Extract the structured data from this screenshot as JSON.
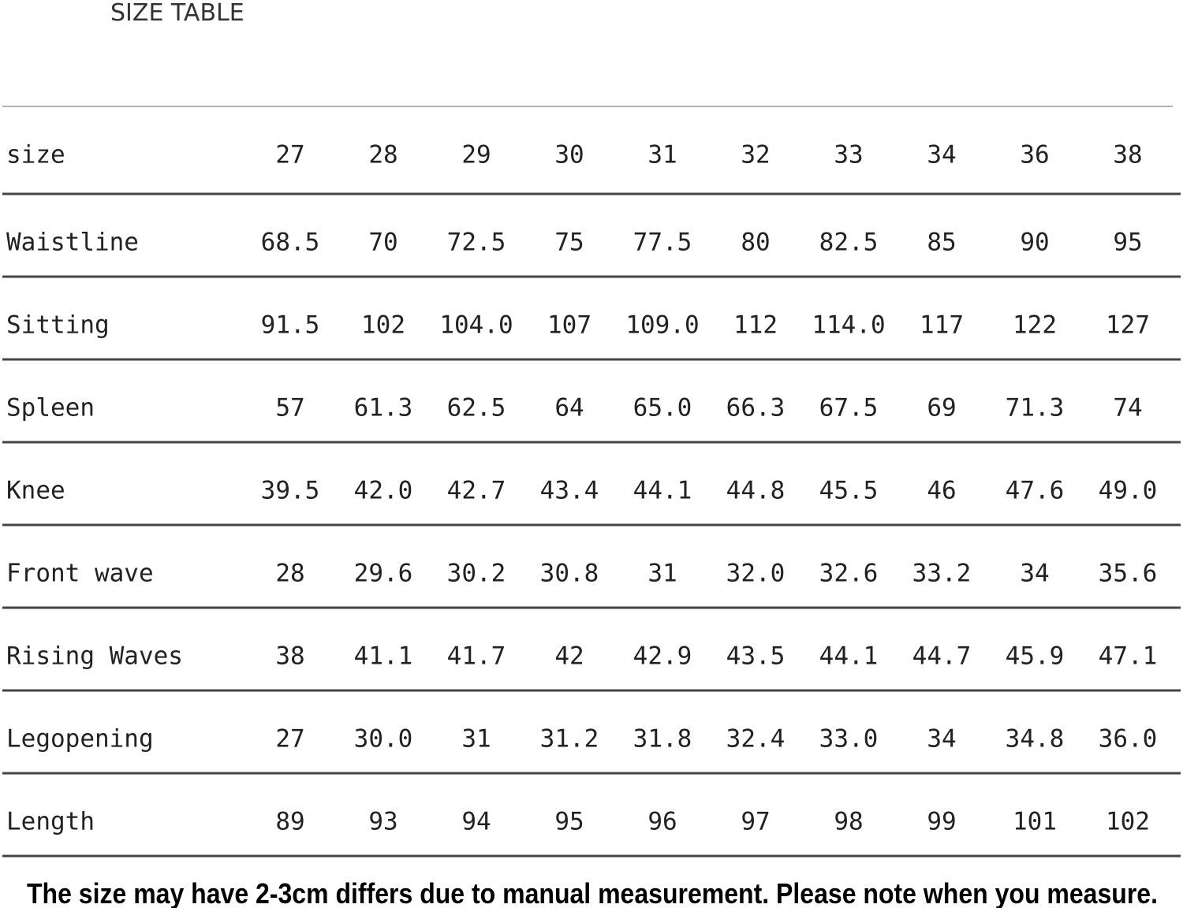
{
  "title": "SIZE TABLE",
  "table": {
    "header": [
      "size",
      "27",
      "28",
      "29",
      "30",
      "31",
      "32",
      "33",
      "34",
      "36",
      "38"
    ],
    "rows": [
      [
        "Waistline",
        "68.5",
        "70",
        "72.5",
        "75",
        "77.5",
        "80",
        "82.5",
        "85",
        "90",
        "95"
      ],
      [
        "Sitting",
        "91.5",
        "102",
        "104.0",
        "107",
        "109.0",
        "112",
        "114.0",
        "117",
        "122",
        "127"
      ],
      [
        "Spleen",
        "57",
        "61.3",
        "62.5",
        "64",
        "65.0",
        "66.3",
        "67.5",
        "69",
        "71.3",
        "74"
      ],
      [
        "Knee",
        "39.5",
        "42.0",
        "42.7",
        "43.4",
        "44.1",
        "44.8",
        "45.5",
        "46",
        "47.6",
        "49.0"
      ],
      [
        "Front wave",
        "28",
        "29.6",
        "30.2",
        "30.8",
        "31",
        "32.0",
        "32.6",
        "33.2",
        "34",
        "35.6"
      ],
      [
        "Rising Waves",
        "38",
        "41.1",
        "41.7",
        "42",
        "42.9",
        "43.5",
        "44.1",
        "44.7",
        "45.9",
        "47.1"
      ],
      [
        "Legopening",
        "27",
        "30.0",
        "31",
        "31.2",
        "31.8",
        "32.4",
        "33.0",
        "34",
        "34.8",
        "36.0"
      ],
      [
        "Length",
        "89",
        "93",
        "94",
        "95",
        "96",
        "97",
        "98",
        "99",
        "101",
        "102"
      ]
    ]
  },
  "note": "The size may have 2-3cm differs due to manual measurement. Please note when you measure."
}
